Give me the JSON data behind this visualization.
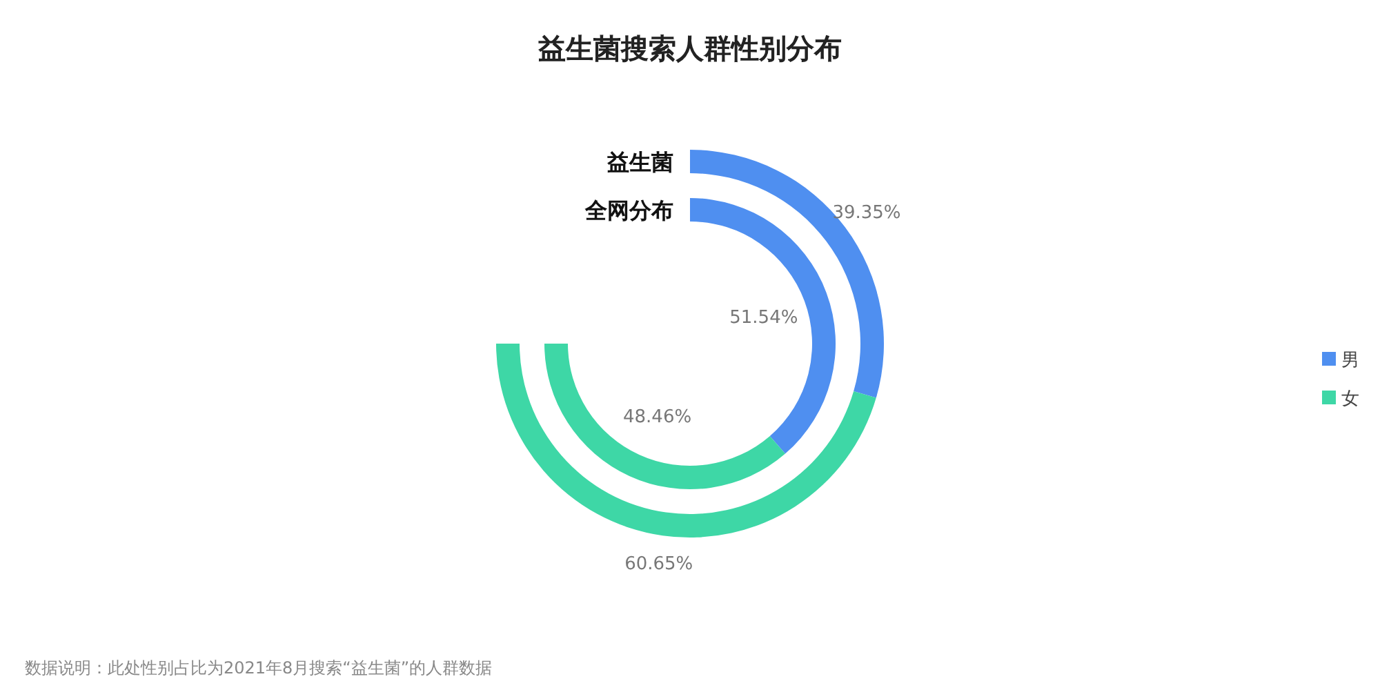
{
  "chart_data": {
    "type": "donut",
    "title": "益生菌搜索人群性别分布",
    "categories": [
      "男",
      "女"
    ],
    "colors": [
      "#4f8ff0",
      "#3ed7a6"
    ],
    "series": [
      {
        "name": "益生菌",
        "values": [
          39.35,
          60.65
        ],
        "value_labels": [
          "39.35%",
          "60.65%"
        ]
      },
      {
        "name": "全网分布",
        "values": [
          51.54,
          48.46
        ],
        "value_labels": [
          "51.54%",
          "48.46%"
        ]
      }
    ],
    "legend": "right",
    "annotations": [
      "数据说明：此处性别占比为2021年8月搜索“益生菌”的人群数据"
    ]
  }
}
